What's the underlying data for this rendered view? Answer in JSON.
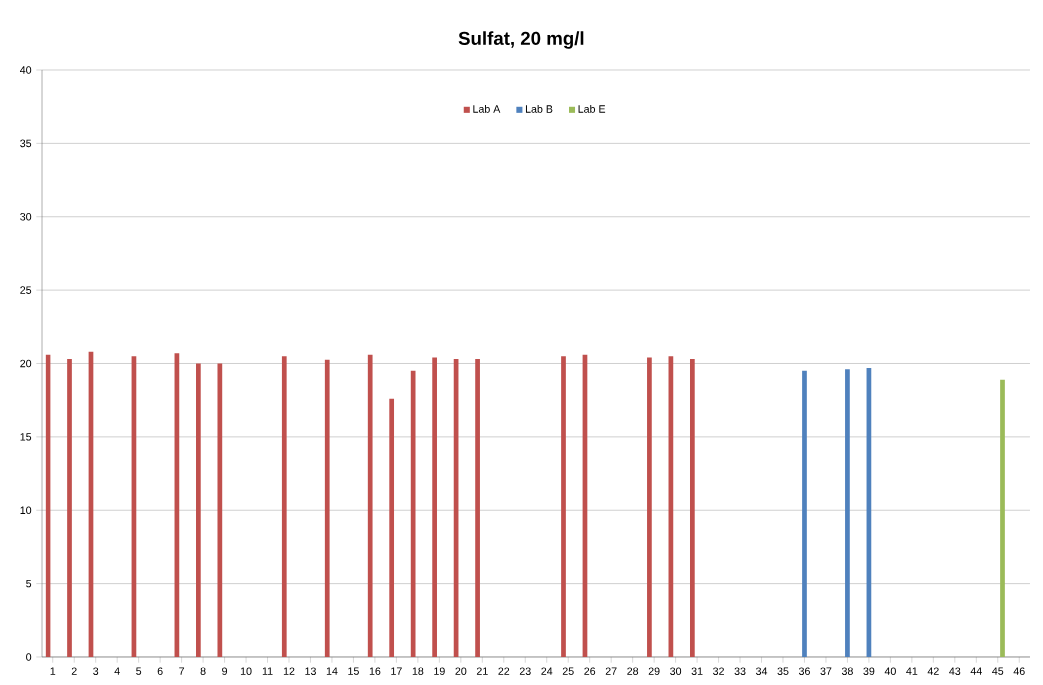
{
  "chart_data": {
    "type": "bar",
    "title": "Sulfat, 20 mg/l",
    "categories": [
      "1",
      "2",
      "3",
      "4",
      "5",
      "6",
      "7",
      "8",
      "9",
      "10",
      "11",
      "12",
      "13",
      "14",
      "15",
      "16",
      "17",
      "18",
      "19",
      "20",
      "21",
      "22",
      "23",
      "24",
      "25",
      "26",
      "27",
      "28",
      "29",
      "30",
      "31",
      "32",
      "33",
      "34",
      "35",
      "36",
      "37",
      "38",
      "39",
      "40",
      "41",
      "42",
      "43",
      "44",
      "45",
      "46"
    ],
    "series": [
      {
        "name": "Lab A",
        "color": "#c0504d",
        "values": [
          20.6,
          20.3,
          20.8,
          null,
          20.5,
          null,
          20.7,
          20.0,
          20.0,
          null,
          null,
          20.5,
          null,
          20.25,
          null,
          20.6,
          17.6,
          19.5,
          20.4,
          20.3,
          20.3,
          null,
          null,
          null,
          20.5,
          20.6,
          null,
          null,
          20.4,
          20.5,
          20.3,
          null,
          null,
          null,
          null,
          null,
          null,
          null,
          null,
          null,
          null,
          null,
          null,
          null,
          null,
          null
        ]
      },
      {
        "name": "Lab B",
        "color": "#4f81bd",
        "values": [
          null,
          null,
          null,
          null,
          null,
          null,
          null,
          null,
          null,
          null,
          null,
          null,
          null,
          null,
          null,
          null,
          null,
          null,
          null,
          null,
          null,
          null,
          null,
          null,
          null,
          null,
          null,
          null,
          null,
          null,
          null,
          null,
          null,
          null,
          null,
          19.5,
          null,
          19.6,
          19.7,
          null,
          null,
          null,
          null,
          null,
          null,
          null
        ]
      },
      {
        "name": "Lab E",
        "color": "#9bbb59",
        "values": [
          null,
          null,
          null,
          null,
          null,
          null,
          null,
          null,
          null,
          null,
          null,
          null,
          null,
          null,
          null,
          null,
          null,
          null,
          null,
          null,
          null,
          null,
          null,
          null,
          null,
          null,
          null,
          null,
          null,
          null,
          null,
          null,
          null,
          null,
          null,
          null,
          null,
          null,
          null,
          null,
          null,
          null,
          null,
          null,
          18.9,
          null
        ]
      }
    ],
    "ylim": [
      0,
      40
    ],
    "yticks": [
      0,
      5,
      10,
      15,
      20,
      25,
      30,
      35,
      40
    ],
    "grid": "y",
    "legend": "top"
  }
}
